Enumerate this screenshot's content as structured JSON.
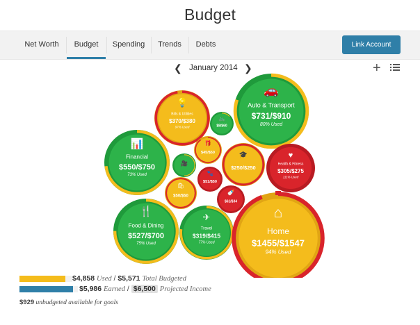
{
  "page": {
    "title": "Budget"
  },
  "nav": {
    "tabs": [
      {
        "label": "Net Worth",
        "active": false
      },
      {
        "label": "Budget",
        "active": true
      },
      {
        "label": "Spending",
        "active": false
      },
      {
        "label": "Trends",
        "active": false
      },
      {
        "label": "Debts",
        "active": false
      }
    ],
    "link_account_label": "Link Account"
  },
  "month": {
    "label": "January 2014"
  },
  "colors": {
    "green": "#2db34a",
    "yellow": "#f4bc1c",
    "red": "#d9242b",
    "accent": "#2f7fa8"
  },
  "bubbles": [
    {
      "id": "bills",
      "icon": "lightbulb-icon",
      "title": "Bills & Utilities",
      "amount": "$370/$380",
      "pct": "97% Used",
      "status": "yellow",
      "used": 0.97
    },
    {
      "id": "auto",
      "icon": "car-icon",
      "title": "Auto & Transport",
      "amount": "$731/$910",
      "pct": "80% Used",
      "status": "green",
      "used": 0.8
    },
    {
      "id": "bike",
      "icon": "bicycle-icon",
      "title": "",
      "amount": "$8/$60",
      "pct": "",
      "status": "green",
      "used": 0.13
    },
    {
      "id": "financial",
      "icon": "bar-chart-icon",
      "title": "Financial",
      "amount": "$550/$750",
      "pct": "73% Used",
      "status": "green",
      "used": 0.73
    },
    {
      "id": "gifts",
      "icon": "gift-icon",
      "title": "",
      "amount": "$45/$50",
      "pct": "",
      "status": "yellow",
      "used": 0.9
    },
    {
      "id": "education",
      "icon": "graduation-cap-icon",
      "title": "",
      "amount": "$250/$250",
      "pct": "",
      "status": "yellow",
      "used": 1.0
    },
    {
      "id": "health",
      "icon": "heartbeat-icon",
      "title": "Health & Fitness",
      "amount": "$305/$275",
      "pct": "111% Used",
      "status": "red",
      "used": 1.11
    },
    {
      "id": "entertainment",
      "icon": "video-camera-icon",
      "title": "",
      "amount": "",
      "pct": "",
      "status": "green",
      "used": 0.5
    },
    {
      "id": "pets",
      "icon": "paw-icon",
      "title": "",
      "amount": "$51/$50",
      "pct": "",
      "status": "red",
      "used": 1.02
    },
    {
      "id": "shopping",
      "icon": "shopping-bag-icon",
      "title": "",
      "amount": "$50/$50",
      "pct": "",
      "status": "yellow",
      "used": 1.0
    },
    {
      "id": "kids",
      "icon": "bottle-icon",
      "title": "",
      "amount": "$61/$34",
      "pct": "",
      "status": "red",
      "used": 1.79
    },
    {
      "id": "food",
      "icon": "utensils-icon",
      "title": "Food & Dining",
      "amount": "$527/$700",
      "pct": "75% Used",
      "status": "green",
      "used": 0.75
    },
    {
      "id": "travel",
      "icon": "airplane-icon",
      "title": "Travel",
      "amount": "$319/$415",
      "pct": "77% Used",
      "status": "green",
      "used": 0.77
    },
    {
      "id": "home",
      "icon": "house-icon",
      "title": "Home",
      "amount": "$1455/$1547",
      "pct": "94% Used",
      "status": "yellow",
      "used": 0.94
    }
  ],
  "summary": {
    "used": "$4,858",
    "used_word": "Used",
    "total_budgeted": "$5,571",
    "total_budgeted_word": "Total Budgeted",
    "used_fraction": 0.87,
    "earned": "$5,986",
    "earned_word": "Earned",
    "projected": "$6,500",
    "projected_word": "Projected Income",
    "earned_fraction": 0.92,
    "unbudgeted_amount": "$929",
    "unbudgeted_text": "unbudgeted available for goals"
  }
}
